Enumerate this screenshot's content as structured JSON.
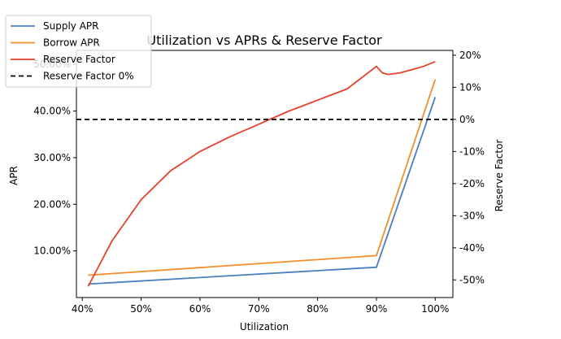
{
  "chart_data": {
    "type": "line",
    "title": "Utilization vs APRs & Reserve Factor",
    "xlabel": "Utilization",
    "ylabel": "APR",
    "y2label": "Reserve Factor",
    "xlim": [
      0.39,
      1.03
    ],
    "ylim": [
      0.0,
      0.53
    ],
    "y2lim": [
      -0.555,
      0.215
    ],
    "x_ticks": [
      0.4,
      0.5,
      0.6,
      0.7,
      0.8,
      0.9,
      1.0
    ],
    "x_tick_labels": [
      "40%",
      "50%",
      "60%",
      "70%",
      "80%",
      "90%",
      "100%"
    ],
    "y_ticks": [
      0.1,
      0.2,
      0.3,
      0.4,
      0.5
    ],
    "y_tick_labels": [
      "10.00%",
      "20.00%",
      "30.00%",
      "40.00%",
      "50.00%"
    ],
    "y2_ticks": [
      -0.5,
      -0.4,
      -0.3,
      -0.2,
      -0.1,
      0.0,
      0.1,
      0.2
    ],
    "y2_tick_labels": [
      "-50%",
      "-40%",
      "-30%",
      "-20%",
      "-10%",
      "0%",
      "10%",
      "20%"
    ],
    "legend_position": "top-left",
    "series": [
      {
        "name": "Supply APR",
        "axis": "left",
        "color": "#4a7fbf",
        "style": "solid",
        "x": [
          0.41,
          0.9,
          1.0
        ],
        "y": [
          0.029,
          0.065,
          0.43
        ]
      },
      {
        "name": "Borrow APR",
        "axis": "left",
        "color": "#f28e2b",
        "style": "solid",
        "x": [
          0.41,
          0.9,
          1.0
        ],
        "y": [
          0.048,
          0.09,
          0.468
        ]
      },
      {
        "name": "Reserve Factor",
        "axis": "right",
        "color": "#e8412b",
        "style": "solid",
        "x": [
          0.41,
          0.45,
          0.5,
          0.55,
          0.6,
          0.65,
          0.7,
          0.75,
          0.8,
          0.85,
          0.9,
          0.91,
          0.92,
          0.94,
          0.96,
          0.98,
          1.0
        ],
        "y": [
          -0.52,
          -0.38,
          -0.25,
          -0.16,
          -0.1,
          -0.055,
          -0.015,
          0.025,
          0.06,
          0.095,
          0.165,
          0.145,
          0.14,
          0.145,
          0.155,
          0.165,
          0.18
        ]
      },
      {
        "name": "Reserve Factor 0%",
        "axis": "right",
        "color": "#000000",
        "style": "dashed",
        "x": [
          0.39,
          1.03
        ],
        "y": [
          0.0,
          0.0
        ]
      }
    ]
  }
}
